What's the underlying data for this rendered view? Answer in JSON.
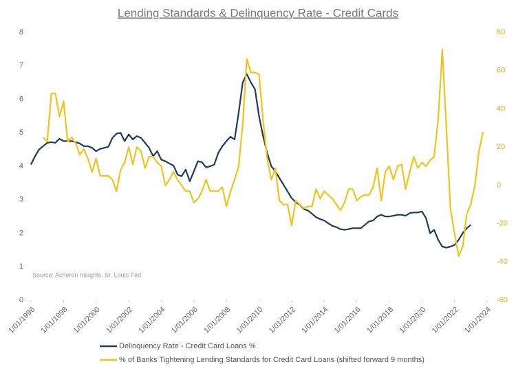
{
  "chart_data": {
    "type": "line",
    "title": "Lending Standards & Delinquency Rate - Credit Cards",
    "annotation": "Source: Acheron Insights, St. Louis Fed",
    "xlim": [
      1996,
      2024
    ],
    "xticks": [
      {
        "value": 1996,
        "label": "1/01/1996"
      },
      {
        "value": 1998,
        "label": "1/01/1998"
      },
      {
        "value": 2000,
        "label": "1/01/2000"
      },
      {
        "value": 2002,
        "label": "1/01/2002"
      },
      {
        "value": 2004,
        "label": "1/01/2004"
      },
      {
        "value": 2006,
        "label": "1/01/2006"
      },
      {
        "value": 2008,
        "label": "1/01/2008"
      },
      {
        "value": 2010,
        "label": "1/01/2010"
      },
      {
        "value": 2012,
        "label": "1/01/2012"
      },
      {
        "value": 2014,
        "label": "1/01/2014"
      },
      {
        "value": 2016,
        "label": "1/01/2016"
      },
      {
        "value": 2018,
        "label": "1/01/2018"
      },
      {
        "value": 2020,
        "label": "1/01/2020"
      },
      {
        "value": 2022,
        "label": "1/01/2022"
      },
      {
        "value": 2024,
        "label": "1/01/2024"
      }
    ],
    "ylim": [
      0,
      8
    ],
    "yticks": [
      0,
      1,
      2,
      3,
      4,
      5,
      6,
      7,
      8
    ],
    "y2lim": [
      -60,
      80
    ],
    "y2ticks": [
      -60,
      -40,
      -20,
      0,
      20,
      40,
      60,
      80
    ],
    "legend": "bottom",
    "series": [
      {
        "name": "Delinquency Rate - Credit Card Loans %",
        "color": "#1f3a5a",
        "x": [
          1996,
          1996.25,
          1996.5,
          1996.75,
          1997,
          1997.25,
          1997.5,
          1997.75,
          1998,
          1998.25,
          1998.5,
          1998.75,
          1999,
          1999.25,
          1999.5,
          1999.75,
          2000,
          2000.25,
          2000.5,
          2000.75,
          2001,
          2001.25,
          2001.5,
          2001.75,
          2002,
          2002.25,
          2002.5,
          2002.75,
          2003,
          2003.25,
          2003.5,
          2003.75,
          2004,
          2004.25,
          2004.5,
          2004.75,
          2005,
          2005.25,
          2005.5,
          2005.75,
          2006,
          2006.25,
          2006.5,
          2006.75,
          2007,
          2007.25,
          2007.5,
          2007.75,
          2008,
          2008.25,
          2008.5,
          2008.75,
          2009,
          2009.25,
          2009.5,
          2009.75,
          2010,
          2010.25,
          2010.5,
          2010.75,
          2011,
          2011.25,
          2011.5,
          2011.75,
          2012,
          2012.25,
          2012.5,
          2012.75,
          2013,
          2013.25,
          2013.5,
          2013.75,
          2014,
          2014.25,
          2014.5,
          2014.75,
          2015,
          2015.25,
          2015.5,
          2015.75,
          2016,
          2016.25,
          2016.5,
          2016.75,
          2017,
          2017.25,
          2017.5,
          2017.75,
          2018,
          2018.25,
          2018.5,
          2018.75,
          2019,
          2019.25,
          2019.5,
          2019.75,
          2020,
          2020.25,
          2020.5,
          2020.75,
          2021,
          2021.25,
          2021.5,
          2021.75,
          2022,
          2022.25,
          2022.5,
          2022.75,
          2023
        ],
        "values": [
          4.05,
          4.3,
          4.5,
          4.6,
          4.7,
          4.72,
          4.7,
          4.82,
          4.75,
          4.75,
          4.75,
          4.72,
          4.68,
          4.6,
          4.6,
          4.55,
          4.45,
          4.52,
          4.55,
          4.58,
          4.85,
          4.97,
          5.0,
          4.75,
          4.95,
          4.8,
          4.9,
          4.85,
          4.7,
          4.55,
          4.3,
          4.45,
          4.2,
          4.15,
          4.08,
          4.02,
          3.75,
          3.7,
          3.9,
          3.55,
          3.85,
          4.15,
          4.12,
          3.97,
          4.0,
          4.05,
          4.4,
          4.6,
          4.75,
          4.88,
          4.8,
          5.6,
          6.5,
          6.75,
          6.5,
          6.3,
          5.5,
          4.9,
          4.4,
          4.0,
          3.85,
          3.65,
          3.45,
          3.25,
          3.05,
          2.92,
          2.85,
          2.72,
          2.68,
          2.58,
          2.48,
          2.42,
          2.38,
          2.3,
          2.22,
          2.18,
          2.12,
          2.1,
          2.12,
          2.15,
          2.15,
          2.15,
          2.25,
          2.35,
          2.38,
          2.5,
          2.55,
          2.5,
          2.5,
          2.52,
          2.55,
          2.55,
          2.52,
          2.6,
          2.62,
          2.62,
          2.65,
          2.45,
          2.0,
          2.1,
          1.8,
          1.6,
          1.57,
          1.6,
          1.65,
          1.8,
          2.0,
          2.15,
          2.25
        ]
      },
      {
        "name": "% of Banks Tightening Lending Standards for Credit Card Loans (shifted forward 9 months)",
        "color": "#f0c419",
        "axis": "y2",
        "x": [
          1996.75,
          1997,
          1997.25,
          1997.5,
          1997.75,
          1998,
          1998.25,
          1998.5,
          1998.75,
          1999,
          1999.25,
          1999.5,
          1999.75,
          2000,
          2000.25,
          2000.5,
          2000.75,
          2001,
          2001.25,
          2001.5,
          2001.75,
          2002,
          2002.25,
          2002.5,
          2002.75,
          2003,
          2003.25,
          2003.5,
          2003.75,
          2004,
          2004.25,
          2004.5,
          2004.75,
          2005,
          2005.25,
          2005.5,
          2005.75,
          2006,
          2006.25,
          2006.5,
          2006.75,
          2007,
          2007.25,
          2007.5,
          2007.75,
          2008,
          2008.25,
          2008.5,
          2008.75,
          2009,
          2009.25,
          2009.5,
          2009.75,
          2010,
          2010.25,
          2010.5,
          2010.75,
          2011,
          2011.25,
          2011.5,
          2011.75,
          2012,
          2012.25,
          2012.5,
          2012.75,
          2013,
          2013.25,
          2013.5,
          2013.75,
          2014,
          2014.25,
          2014.5,
          2014.75,
          2015,
          2015.25,
          2015.5,
          2015.75,
          2016,
          2016.25,
          2016.5,
          2016.75,
          2017,
          2017.25,
          2017.5,
          2017.75,
          2018,
          2018.25,
          2018.5,
          2018.75,
          2019,
          2019.25,
          2019.5,
          2019.75,
          2020,
          2020.25,
          2020.5,
          2020.75,
          2021,
          2021.25,
          2021.5,
          2021.75,
          2022,
          2022.25,
          2022.5,
          2022.75,
          2023,
          2023.25,
          2023.5,
          2023.75
        ],
        "values": [
          25,
          23,
          48,
          48,
          36,
          44,
          23,
          25,
          22,
          16,
          19,
          14,
          7,
          14,
          5,
          5,
          5,
          3,
          -3,
          8,
          12,
          20,
          11,
          20,
          18,
          9,
          15,
          15,
          12,
          10,
          0,
          3,
          7,
          3,
          0,
          -3,
          -3,
          -9,
          -7,
          -3,
          3,
          -3,
          -3,
          -3,
          -1,
          -11,
          -3,
          3,
          10,
          32,
          66,
          59,
          59,
          58,
          34,
          14,
          3,
          9,
          -8,
          -10,
          -10,
          -21,
          -8,
          -10,
          -12,
          -11,
          -11,
          -2,
          -7,
          -3,
          -5,
          -7,
          -10,
          -13,
          -9,
          -2,
          -2,
          -8,
          -6,
          -5,
          -5,
          -1,
          9,
          -8,
          7,
          10,
          3,
          10,
          11,
          -2,
          7,
          15,
          9,
          12,
          10,
          13,
          15,
          35,
          71,
          30,
          -12,
          -25,
          -37,
          -32,
          -15,
          -10,
          0,
          18,
          28
        ]
      }
    ]
  }
}
